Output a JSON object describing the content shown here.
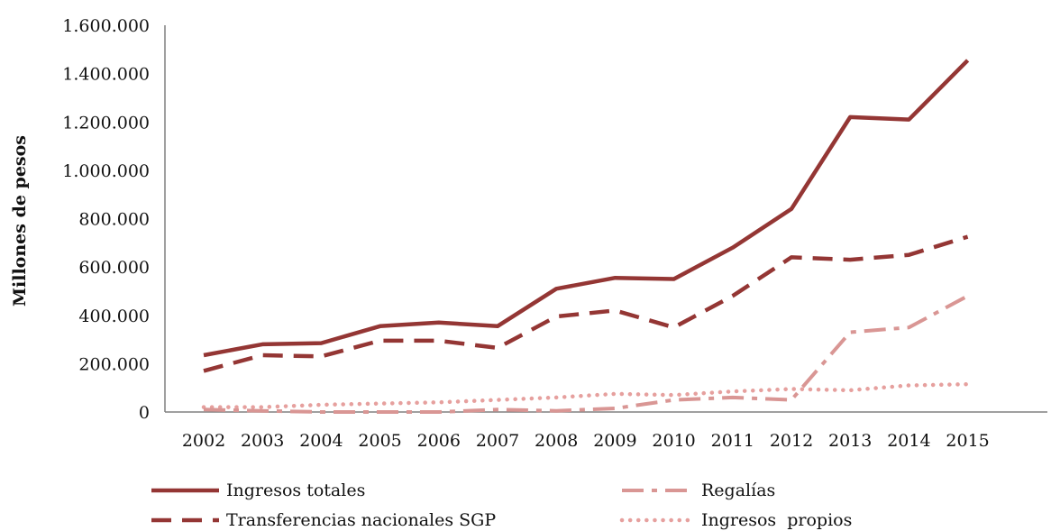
{
  "chart_data": {
    "type": "line",
    "ylabel": "Millones de pesos",
    "xlabel": "",
    "ylim": [
      0,
      1600000
    ],
    "yticks": [
      0,
      200000,
      400000,
      600000,
      800000,
      1000000,
      1200000,
      1400000,
      1600000
    ],
    "ytick_labels": [
      "0",
      "200.000",
      "400.000",
      "600.000",
      "800.000",
      "1.000.000",
      "1.200.000",
      "1.400.000",
      "1.600.000"
    ],
    "categories": [
      "2002",
      "2003",
      "2004",
      "2005",
      "2006",
      "2007",
      "2008",
      "2009",
      "2010",
      "2011",
      "2012",
      "2013",
      "2014",
      "2015"
    ],
    "grid": false,
    "legend_position": "bottom",
    "series": [
      {
        "name": "Ingresos totales",
        "style": "solid",
        "color": "#943634",
        "values": [
          235000,
          280000,
          285000,
          355000,
          370000,
          355000,
          510000,
          555000,
          550000,
          680000,
          840000,
          1220000,
          1210000,
          1455000
        ]
      },
      {
        "name": "Transferencias nacionales SGP",
        "style": "dashed",
        "color": "#943634",
        "values": [
          170000,
          235000,
          230000,
          295000,
          295000,
          265000,
          395000,
          420000,
          350000,
          480000,
          640000,
          630000,
          650000,
          725000
        ]
      },
      {
        "name": "Regalías",
        "style": "dashdot",
        "color": "#d99694",
        "values": [
          10000,
          5000,
          0,
          0,
          0,
          10000,
          5000,
          15000,
          50000,
          60000,
          50000,
          330000,
          350000,
          480000
        ]
      },
      {
        "name": "Ingresos  propios",
        "style": "dotted",
        "color": "#e6a09e",
        "values": [
          20000,
          20000,
          30000,
          35000,
          40000,
          50000,
          60000,
          75000,
          70000,
          85000,
          95000,
          90000,
          110000,
          115000
        ]
      }
    ]
  }
}
